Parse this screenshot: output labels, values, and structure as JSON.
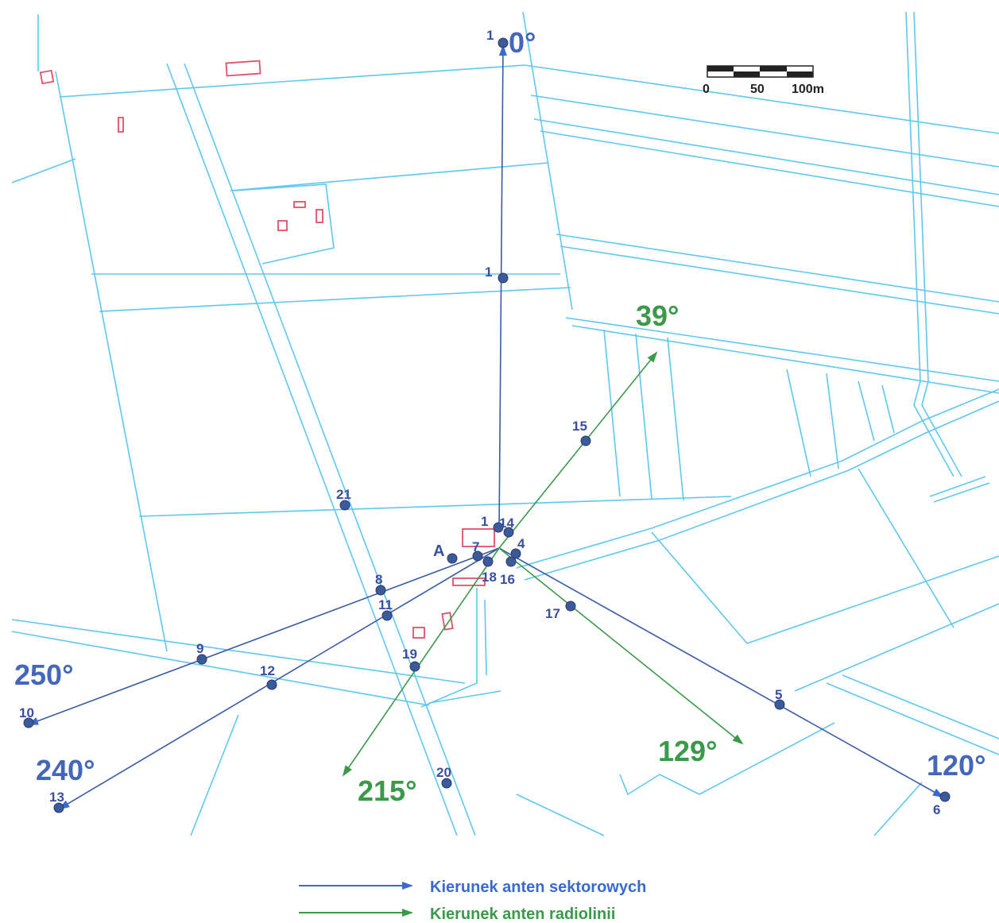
{
  "colors": {
    "parcel_lines": "#5ec8f0",
    "buildings": "#e0506a",
    "sector": "#3a5ca8",
    "radio": "#3a9a4a",
    "point_fill": "#3a5a9a",
    "angle_sector": "#4466bb",
    "angle_radio": "#3a9a4a"
  },
  "angles": {
    "a0": "0°",
    "a39": "39°",
    "a120": "120°",
    "a129": "129°",
    "a215": "215°",
    "a240": "240°",
    "a250": "250°"
  },
  "points": {
    "p1_top": "1",
    "p1_mid": "1",
    "p1_center": "1",
    "p14": "14",
    "pA": "A",
    "p7": "7",
    "p4": "4",
    "p18": "18",
    "p16": "16",
    "p8": "8",
    "p11": "11",
    "p9": "9",
    "p12": "12",
    "p10": "10",
    "p13": "13",
    "p15": "15",
    "p17": "17",
    "p19": "19",
    "p20": "20",
    "p21": "21",
    "p5": "5",
    "p6": "6"
  },
  "scale_bar": {
    "t0": "0",
    "t50": "50",
    "t100": "100m"
  },
  "legend": {
    "sector_label": "Kierunek anten sektorowych",
    "radio_label": "Kierunek anten radiolinii"
  }
}
